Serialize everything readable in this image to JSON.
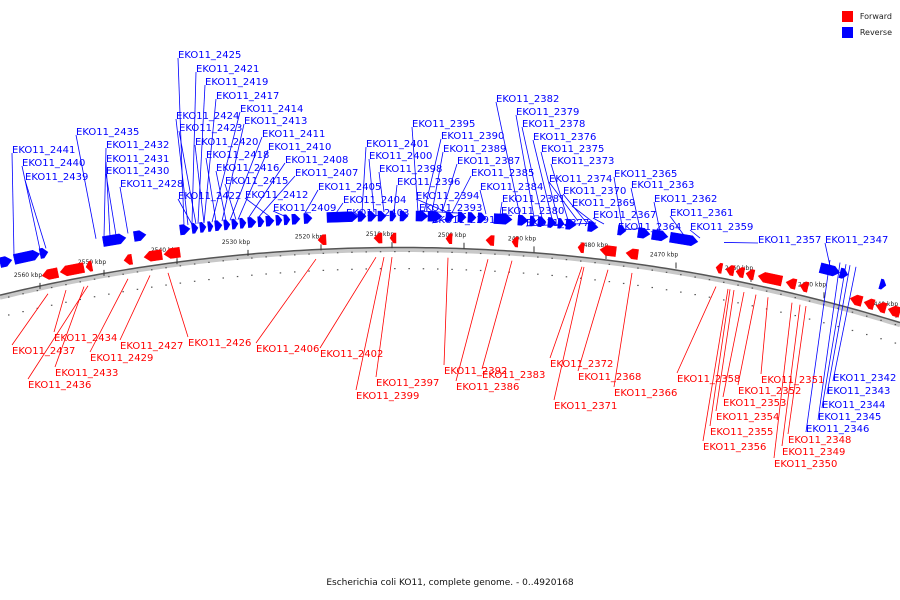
{
  "legend": {
    "forward_label": "Forward",
    "reverse_label": "Reverse",
    "forward_color": "#ff0000",
    "reverse_color": "#0000ff"
  },
  "caption": "Escherichia coli KO11, complete genome. - 0..4920168",
  "axis": {
    "tick_labels": [
      "2560 kbp",
      "2550 kbp",
      "2540 kbp",
      "2530 kbp",
      "2520 kbp",
      "2510 kbp",
      "2500 kbp",
      "2490 kbp",
      "2480 kbp",
      "2470 kbp",
      "2460 kbp",
      "2450 kbp",
      "2440 kbp"
    ]
  },
  "reverse_genes": [
    "EKO11_2441",
    "EKO11_2440",
    "EKO11_2439",
    "EKO11_2435",
    "EKO11_2432",
    "EKO11_2431",
    "EKO11_2430",
    "EKO11_2428",
    "EKO11_2425",
    "EKO11_2421",
    "EKO11_2419",
    "EKO11_2417",
    "EKO11_2424",
    "EKO11_2414",
    "EKO11_2423",
    "EKO11_2413",
    "EKO11_2420",
    "EKO11_2411",
    "EKO11_2418",
    "EKO11_2410",
    "EKO11_2416",
    "EKO11_2408",
    "EKO11_2415",
    "EKO11_2407",
    "EKO11_2422",
    "EKO11_2412",
    "EKO11_2409",
    "EKO11_2405",
    "EKO11_2404",
    "EKO11_2403",
    "EKO11_2401",
    "EKO11_2400",
    "EKO11_2398",
    "EKO11_2396",
    "EKO11_2395",
    "EKO11_2390",
    "EKO11_2389",
    "EKO11_2387",
    "EKO11_2385",
    "EKO11_2394",
    "EKO11_2393",
    "EKO11_2391",
    "EKO11_2384",
    "EKO11_2381",
    "EKO11_2380",
    "EKO11_2382",
    "EKO11_2379",
    "EKO11_2378",
    "EKO11_2376",
    "EKO11_2375",
    "EKO11_2373",
    "EKO11_2374",
    "EKO11_2370",
    "EKO11_2369",
    "EKO11_2377",
    "EKO11_2367",
    "EKO11_2365",
    "EKO11_2363",
    "EKO11_2364",
    "EKO11_2362",
    "EKO11_2361",
    "EKO11_2359",
    "EKO11_2357",
    "EKO11_2347",
    "EKO11_2346",
    "EKO11_2345",
    "EKO11_2344",
    "EKO11_2343",
    "EKO11_2342"
  ],
  "forward_genes": [
    "EKO11_2437",
    "EKO11_2434",
    "EKO11_2433",
    "EKO11_2436",
    "EKO11_2429",
    "EKO11_2427",
    "EKO11_2426",
    "EKO11_2406",
    "EKO11_2402",
    "EKO11_2397",
    "EKO11_2399",
    "EKO11_2392",
    "EKO11_2383",
    "EKO11_2386",
    "EKO11_2372",
    "EKO11_2368",
    "EKO11_2371",
    "EKO11_2366",
    "EKO11_2358",
    "EKO11_2351",
    "EKO11_2352",
    "EKO11_2353",
    "EKO11_2354",
    "EKO11_2355",
    "EKO11_2356",
    "EKO11_2348",
    "EKO11_2349",
    "EKO11_2350"
  ]
}
